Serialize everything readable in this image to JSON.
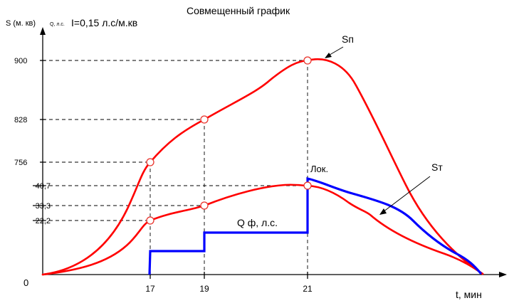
{
  "chart_data": {
    "type": "line",
    "title": "Совмещенный график",
    "ylabel": "S (м. кв)",
    "ylabel_secondary": "Q, л.с.",
    "intensity_note": "I=0,15 л.с/м.кв",
    "xlabel": "t, мин",
    "origin_label": "0",
    "x_ticks": [
      17,
      19,
      21
    ],
    "y_ticks_area": [
      "900",
      "828",
      "756"
    ],
    "y_ticks_flow": [
      "40,7",
      "33,3",
      "22,2"
    ],
    "xlim": [
      13,
      27
    ],
    "ylim_area": [
      0,
      900
    ],
    "ylim_flow": [
      0,
      40.7
    ],
    "annotations": [
      "Лок.",
      "Q ф, л.с."
    ],
    "series": [
      {
        "name": "Sп",
        "color": "#ff0000",
        "points": [
          [
            13,
            0
          ],
          [
            15.4,
            300
          ],
          [
            17,
            756
          ],
          [
            19,
            828
          ],
          [
            21,
            900
          ],
          [
            21.6,
            890
          ],
          [
            23.5,
            430
          ],
          [
            25,
            140
          ],
          [
            26.6,
            0
          ]
        ]
      },
      {
        "name": "Sт",
        "color": "#ff0000",
        "points": [
          [
            13,
            0
          ],
          [
            15.8,
            260
          ],
          [
            17,
            22.2
          ],
          [
            19,
            33.3
          ],
          [
            21,
            40.7
          ],
          [
            22.1,
            31
          ],
          [
            23.4,
            23
          ],
          [
            25.2,
            11
          ],
          [
            26.6,
            0
          ]
        ]
      },
      {
        "name": "Q ф, л.с.",
        "color": "#0000ff",
        "points": [
          [
            17,
            0
          ],
          [
            17,
            9.2
          ],
          [
            19,
            9.2
          ],
          [
            19,
            16.5
          ],
          [
            21,
            16.5
          ],
          [
            21,
            41.7
          ],
          [
            23.4,
            33
          ],
          [
            25.2,
            16
          ],
          [
            26.6,
            0
          ]
        ]
      }
    ]
  }
}
